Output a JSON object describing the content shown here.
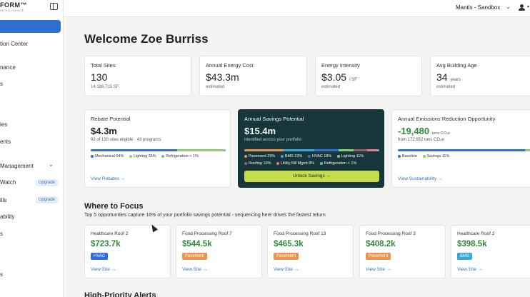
{
  "brand": {
    "logo_text": "FORM™",
    "logo_sub": "INTELLIGENCE"
  },
  "sidebar": {
    "items": [
      {
        "label": "",
        "active": true
      },
      {
        "label": "tion Center"
      },
      {
        "label": "nance"
      },
      {
        "label": "s"
      },
      {
        "label": "ies"
      },
      {
        "label": "ents"
      },
      {
        "label": "Management"
      },
      {
        "label": "Watch",
        "badge": "Upgrade"
      },
      {
        "label": "ills",
        "badge": "Upgrade"
      },
      {
        "label": "ability"
      },
      {
        "label": "s"
      },
      {
        "label": "s"
      }
    ]
  },
  "topbar": {
    "workspace": "Mantis - Sandbox"
  },
  "welcome": "Welcome Zoe Burriss",
  "stats": [
    {
      "label": "Total Sites",
      "value": "130",
      "unit": "",
      "sub": "14,186,715 SF"
    },
    {
      "label": "Annual Energy Cost",
      "value": "$43.3m",
      "unit": "",
      "sub": "estimated"
    },
    {
      "label": "Energy Intensity",
      "value": "$3.05",
      "unit": "/ SF",
      "sub": "estimated"
    },
    {
      "label": "Avg Building Age",
      "value": "34",
      "unit": "years",
      "sub": "estimated"
    }
  ],
  "rebate": {
    "label": "Rebate Potential",
    "value": "$4.3m",
    "sub": "92 of 130 sites eligible · 43 programs",
    "legend": [
      "Mechanical 64%",
      "Lighting 35%",
      "Refrigeration < 1%"
    ],
    "shares": [
      64,
      35,
      1
    ],
    "link": "View Rebates →"
  },
  "savings": {
    "label": "Annual Savings Potential",
    "value": "$15.4m",
    "sub": "Identified across your portfolio",
    "legend_row1": [
      "Pavement 29%",
      "BMS 23%",
      "HVAC 18%",
      "Lighting 11%"
    ],
    "legend_row2": [
      "Roofing 10%",
      "Utility Bill Mgmt 8%",
      "Refrigeration < 1%"
    ],
    "shares": [
      29,
      23,
      18,
      11,
      10,
      8,
      1
    ],
    "button": "Unlock Savings →"
  },
  "emissions": {
    "label": "Annual Emissions Reduction Opportunity",
    "value": "-19,480",
    "unit": "tons CO₂e",
    "sub": "from 172,652 tons CO₂e",
    "legend": [
      "Baseline",
      "Savings 11%"
    ],
    "shares": [
      89,
      11
    ],
    "link": "View Sustainability →"
  },
  "focus": {
    "title": "Where to Focus",
    "subtitle": "Top 5 opportunities capture 16% of your portfolio savings potential - sequencing here drives the fastest return",
    "link_label": "View Site →",
    "items": [
      {
        "name": "Healthcare Roof 2",
        "value": "$723.7k",
        "tag": "HVAC",
        "tag_color": "#2f6fd3"
      },
      {
        "name": "Food Processing Roof 7",
        "value": "$544.5k",
        "tag": "Pavement",
        "tag_color": "#e8954f"
      },
      {
        "name": "Food Processing Roof 13",
        "value": "$465.3k",
        "tag": "Pavement",
        "tag_color": "#e8954f"
      },
      {
        "name": "Food Processing Roof 3",
        "value": "$408.2k",
        "tag": "Pavement",
        "tag_color": "#e8954f"
      },
      {
        "name": "Healthcare Roof 2",
        "value": "$398.5k",
        "tag": "BMS",
        "tag_color": "#35a7d8"
      }
    ]
  },
  "alerts_title": "High-Priority Alerts",
  "colors": {
    "accent": "#2f6fd3",
    "green": "#2f8a3a",
    "lime": "#c7dc4a",
    "dark_card": "#17363b",
    "rebate_bar": [
      "#2f6fd3",
      "#8ccf6d",
      "#6fb3c8"
    ],
    "savings_bar": [
      "#e8954f",
      "#35a7d8",
      "#2f6fd3",
      "#8ccf6d",
      "#a35b6a",
      "#e87a9a",
      "#6fb3c8"
    ],
    "emissions_bar": [
      "#2f6fd3",
      "#8ccf6d"
    ]
  }
}
